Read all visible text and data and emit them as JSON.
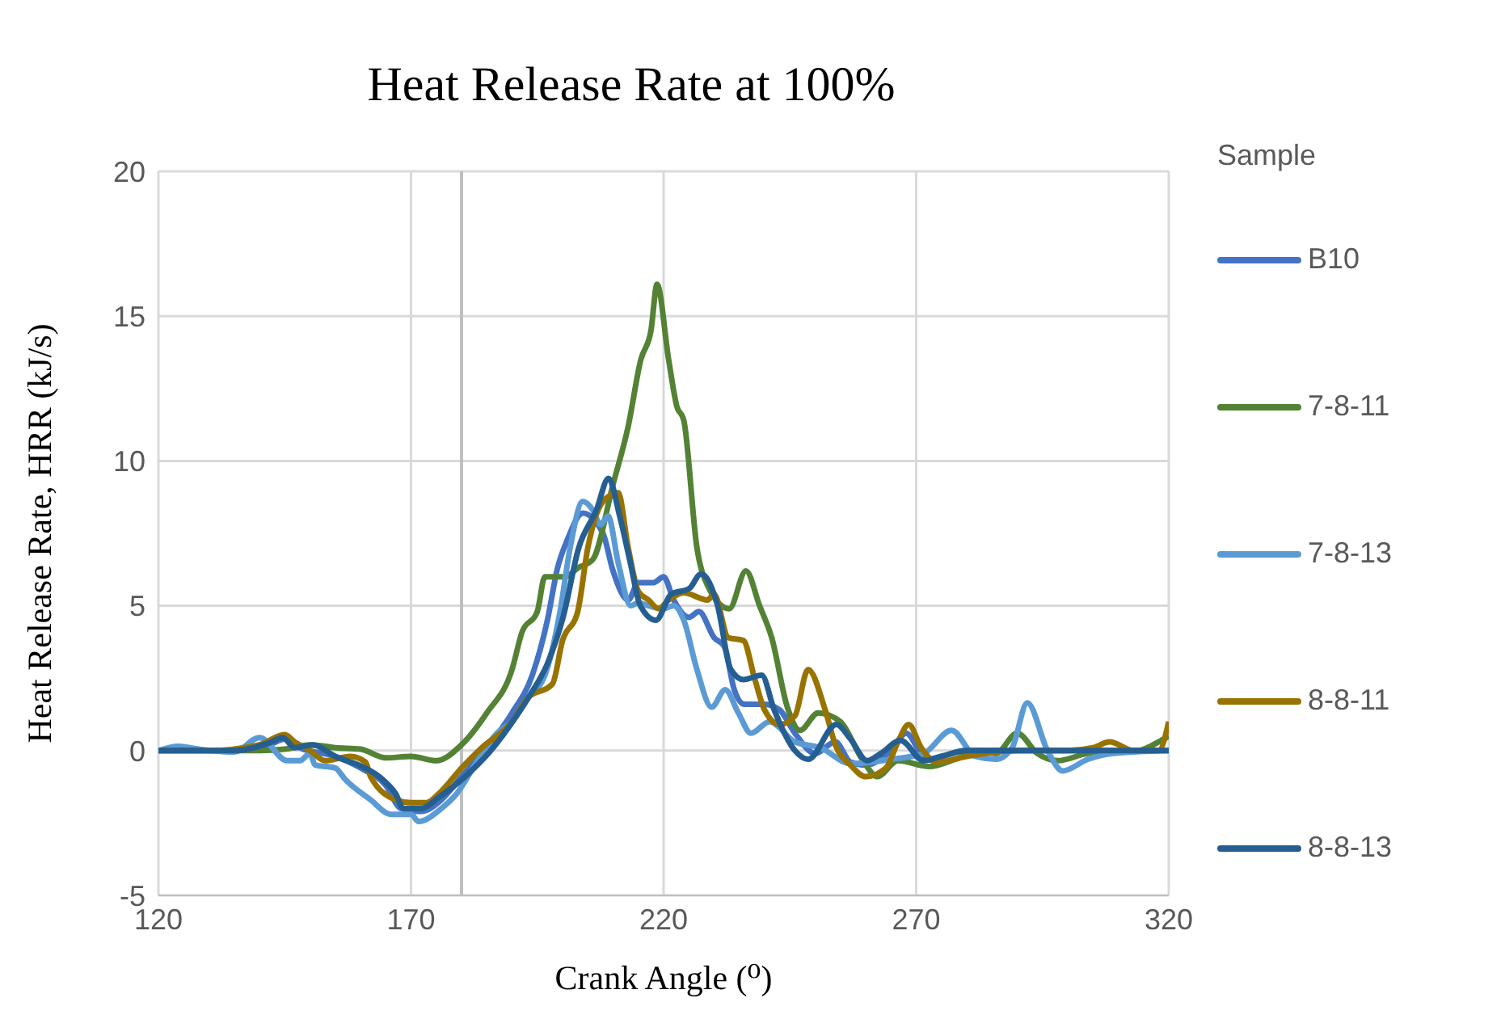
{
  "chart_data": {
    "type": "line",
    "title": "Heat Release Rate at 100%",
    "xlabel": "Crank Angle (⁰)",
    "ylabel": "Heat Release Rate, HRR (kJ/s)",
    "legend_title": "Sample",
    "legend": "right",
    "grid": true,
    "xlim": [
      120,
      320
    ],
    "xticks": [
      120,
      170,
      220,
      270,
      320
    ],
    "ylim": [
      -5,
      20
    ],
    "yticks": [
      -5,
      0,
      5,
      10,
      15,
      20
    ],
    "ref_lines": [
      {
        "axis": "x",
        "value": 180,
        "label": null,
        "color": "#bfbfbf"
      }
    ],
    "series": [
      {
        "name": "B10",
        "color": "#4472c4",
        "x": [
          120,
          135,
          142,
          145,
          148,
          155,
          160,
          165,
          168,
          172,
          176,
          180,
          185,
          190,
          194,
          197,
          199,
          201,
          204,
          208,
          210,
          213,
          215,
          218,
          220,
          222,
          225,
          227,
          230,
          232,
          234,
          236,
          240,
          243,
          246,
          250,
          254,
          257,
          260,
          265,
          268,
          272,
          275,
          280,
          320
        ],
        "values": [
          0,
          0,
          0.2,
          0.4,
          0.1,
          -0.2,
          -0.6,
          -1.2,
          -2,
          -2.1,
          -1.7,
          -0.9,
          0.1,
          1.3,
          2.6,
          4.5,
          6.3,
          7.3,
          8.2,
          7.5,
          6.2,
          5.2,
          5.8,
          5.8,
          6,
          5.2,
          4.6,
          4.8,
          3.9,
          3.6,
          2.1,
          1.6,
          1.6,
          1.4,
          0.6,
          -0.1,
          0.3,
          -0.4,
          -0.5,
          0,
          0.6,
          -0.3,
          -0.2,
          0,
          0
        ]
      },
      {
        "name": "7-8-11",
        "color": "#548235",
        "x": [
          120,
          130,
          140,
          145,
          150,
          155,
          160,
          165,
          170,
          175,
          180,
          185,
          190,
          192,
          195,
          196.5,
          200.5,
          203,
          206,
          210,
          213,
          215.5,
          217.5,
          218.7,
          221,
          222.6,
          224,
          226.6,
          228.7,
          233,
          236.3,
          239,
          241.4,
          244.5,
          247,
          250.6,
          255,
          259.3,
          262.3,
          266.4,
          272.6,
          277.7,
          282.8,
          285.8,
          290,
          294,
          298,
          304,
          314,
          318.5,
          320
        ],
        "values": [
          0,
          0,
          0,
          0.05,
          0.2,
          0.1,
          0.05,
          -0.25,
          -0.2,
          -0.35,
          0.2,
          1.3,
          2.8,
          4.1,
          4.8,
          6,
          6,
          6.3,
          6.6,
          9.2,
          11.2,
          13.5,
          14.5,
          16.1,
          13.5,
          11.9,
          11.4,
          7,
          5.7,
          4.9,
          6.2,
          5,
          3.9,
          1.5,
          0.7,
          1.3,
          1,
          -0.3,
          -0.9,
          -0.35,
          -0.55,
          -0.3,
          0,
          -0.1,
          0.6,
          -0.1,
          -0.35,
          -0.1,
          0,
          0.35,
          0.5
        ]
      },
      {
        "name": "7-8-13",
        "color": "#5b9bd5",
        "x": [
          120,
          124,
          128,
          135,
          140,
          145.5,
          148,
          150,
          151,
          155,
          157,
          162,
          166,
          170,
          171.5,
          176,
          179,
          183,
          187,
          190,
          193,
          196.5,
          199.5,
          201.5,
          204,
          206,
          207.5,
          209,
          211,
          213.5,
          215,
          217,
          220,
          222,
          224,
          226.6,
          229.5,
          232.2,
          234.8,
          237.3,
          241,
          246,
          251,
          257,
          265,
          271.5,
          277,
          281.7,
          285.8,
          289,
          292,
          296,
          299,
          304,
          309,
          320
        ],
        "values": [
          0,
          0.15,
          0.05,
          -0.05,
          0.45,
          -0.35,
          -0.35,
          -0.1,
          -0.5,
          -0.6,
          -1,
          -1.7,
          -2.2,
          -2.2,
          -2.45,
          -2,
          -1.5,
          -0.4,
          0.6,
          1,
          1.8,
          2.6,
          4.8,
          7,
          8.6,
          8.3,
          7.8,
          8.1,
          6.5,
          5,
          5.1,
          5,
          4.9,
          5,
          4.5,
          2.8,
          1.5,
          2.1,
          1.3,
          0.6,
          1,
          0.3,
          0.1,
          -0.45,
          -0.3,
          -0.1,
          0.7,
          -0.2,
          -0.3,
          0.1,
          1.65,
          0,
          -0.7,
          -0.3,
          -0.1,
          0
        ]
      },
      {
        "name": "8-8-11",
        "color": "#997300",
        "x": [
          120,
          130,
          140,
          145,
          147,
          150,
          153,
          158,
          161,
          162,
          167,
          170,
          173,
          176,
          180,
          184,
          190,
          193,
          198,
          200,
          203,
          205,
          208,
          211,
          213,
          215,
          217,
          219,
          221,
          224,
          228.7,
          230,
          232.8,
          235.8,
          238,
          240,
          243,
          246,
          248.6,
          252,
          254,
          257,
          260,
          264,
          266.4,
          268.5,
          271,
          274,
          280,
          290,
          300,
          305,
          308.3,
          313,
          318,
          320
        ],
        "values": [
          0,
          0,
          0.2,
          0.55,
          0.3,
          0,
          -0.35,
          -0.2,
          -0.4,
          -0.9,
          -1.7,
          -1.8,
          -1.8,
          -1.4,
          -0.6,
          0.1,
          1,
          1.8,
          2.3,
          3.8,
          4.8,
          7,
          8.6,
          8.9,
          7,
          5.5,
          5.2,
          4.9,
          5.2,
          5.45,
          5.2,
          5.4,
          3.9,
          3.8,
          2.5,
          1.4,
          0.9,
          1.2,
          2.8,
          1.4,
          0.2,
          -0.5,
          -0.9,
          -0.6,
          0.3,
          0.9,
          0.1,
          -0.4,
          -0.2,
          0,
          0,
          0.1,
          0.3,
          0,
          0,
          1
        ]
      },
      {
        "name": "8-8-13",
        "color": "#255e91",
        "x": [
          120,
          135,
          142,
          144.6,
          147,
          150.6,
          155,
          160.3,
          164.4,
          167,
          168.5,
          172,
          175.6,
          180.7,
          185.8,
          190.9,
          193.5,
          197,
          200.1,
          203.2,
          206.7,
          209.1,
          211.3,
          213.4,
          215.4,
          218.5,
          221.5,
          225.1,
          227.4,
          230.7,
          233.3,
          235.8,
          239.4,
          241.9,
          246,
          248.6,
          254.2,
          257,
          260.3,
          263,
          266.9,
          271.5,
          275,
          280,
          320
        ],
        "values": [
          0,
          0,
          0.27,
          0.45,
          0.1,
          0.2,
          -0.2,
          -0.55,
          -1,
          -1.5,
          -2,
          -2,
          -1.6,
          -0.9,
          0,
          1.2,
          1.9,
          3,
          4.6,
          7,
          8.3,
          9.4,
          8.1,
          6.5,
          5,
          4.5,
          5.4,
          5.6,
          6.1,
          5,
          2.8,
          2.45,
          2.6,
          1.4,
          0,
          -0.3,
          0.9,
          0.4,
          -0.35,
          -0.1,
          0.35,
          -0.35,
          -0.2,
          0,
          0
        ]
      }
    ]
  }
}
